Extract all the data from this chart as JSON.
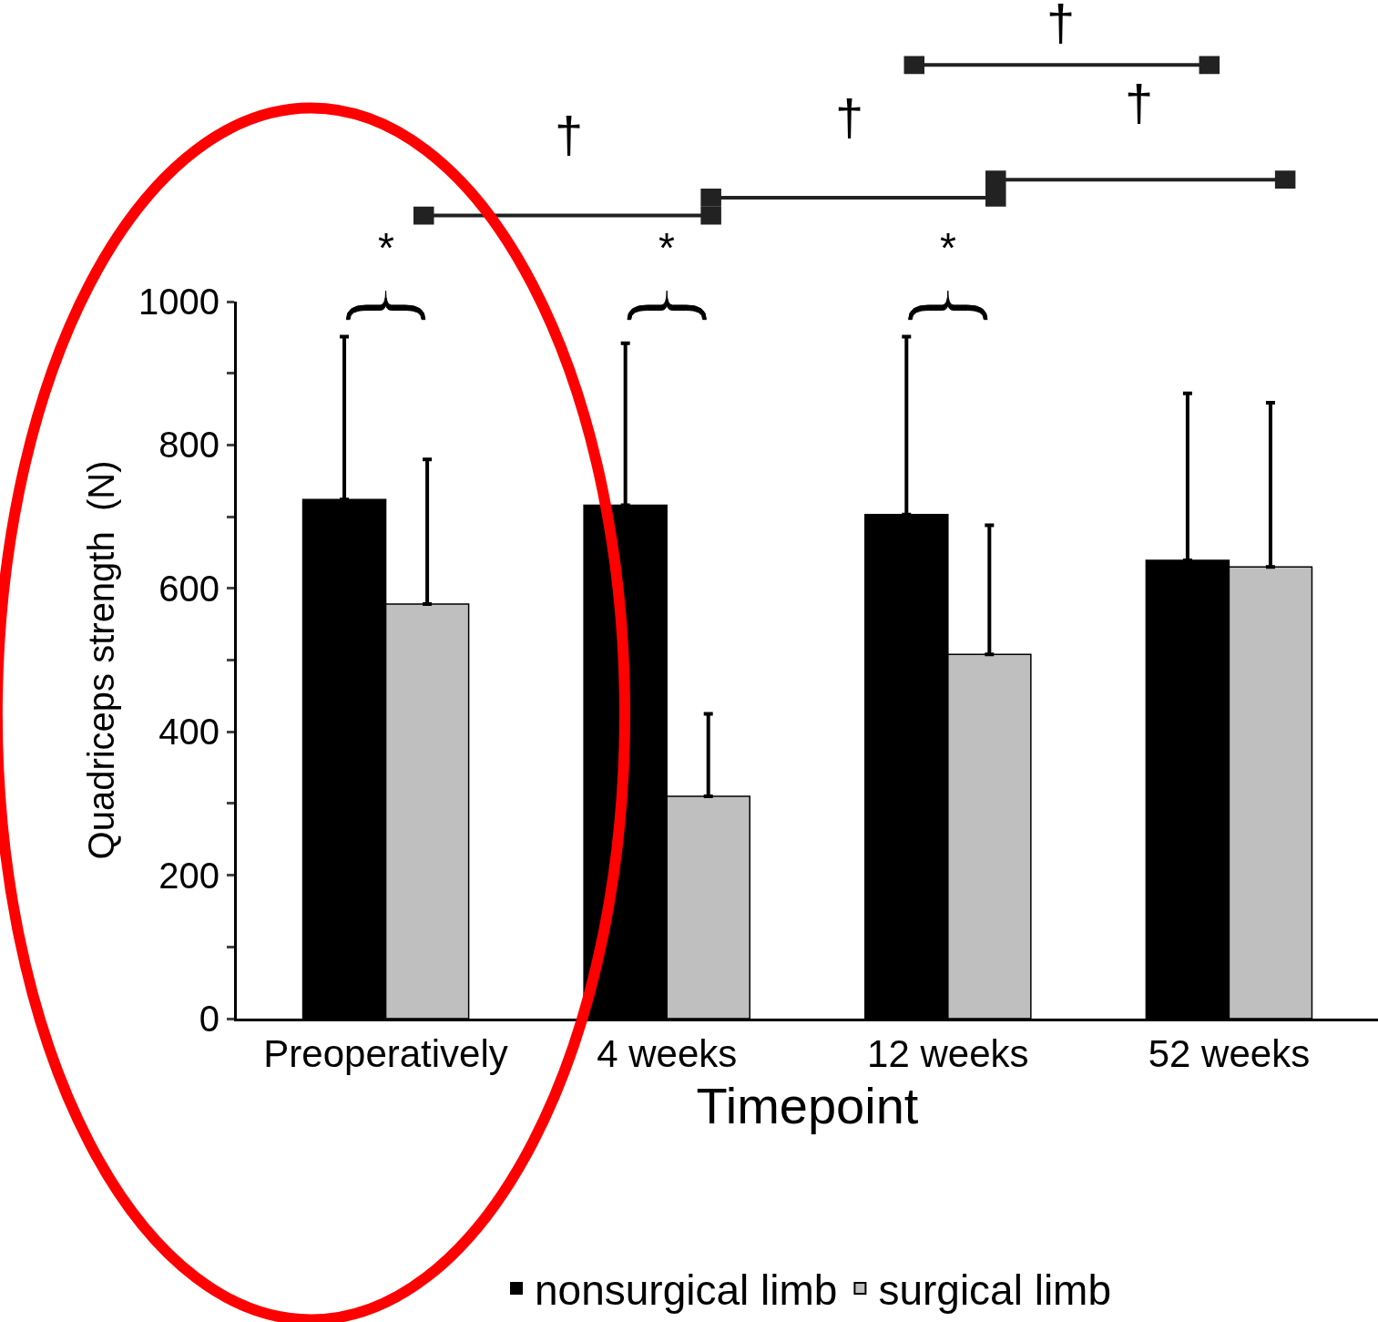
{
  "chart_data": {
    "type": "bar",
    "xlabel": "Timepoint",
    "ylabel": "Quadriceps strength  (N)",
    "categories": [
      "Preoperatively",
      "4 weeks",
      "12 weeks",
      "52 weeks"
    ],
    "series": [
      {
        "name": "nonsurgical limb",
        "color": "#000000",
        "values": [
          724,
          716,
          703,
          639
        ],
        "errors": [
          [
            724,
            951
          ],
          [
            716,
            942
          ],
          [
            703,
            951
          ],
          [
            639,
            872
          ]
        ]
      },
      {
        "name": "surgical limb",
        "color": "#c0bfbf",
        "values": [
          578,
          310,
          508,
          630
        ],
        "errors": [
          [
            578,
            780
          ],
          [
            310,
            425
          ],
          [
            508,
            688
          ],
          [
            630,
            859
          ]
        ]
      }
    ],
    "ylim": [
      0,
      1000
    ],
    "yticks": [
      0,
      {
        "value": 100,
        "label": null
      },
      200,
      {
        "value": 300,
        "label": null
      },
      400,
      {
        "value": 500,
        "label": null
      },
      600,
      {
        "value": 700,
        "label": null
      },
      800,
      {
        "value": 900,
        "label": null
      },
      1000
    ],
    "annotations": [
      "*",
      "*",
      "*",
      "†",
      "†",
      "†",
      "†"
    ],
    "grid": false,
    "legend": "bottom"
  }
}
